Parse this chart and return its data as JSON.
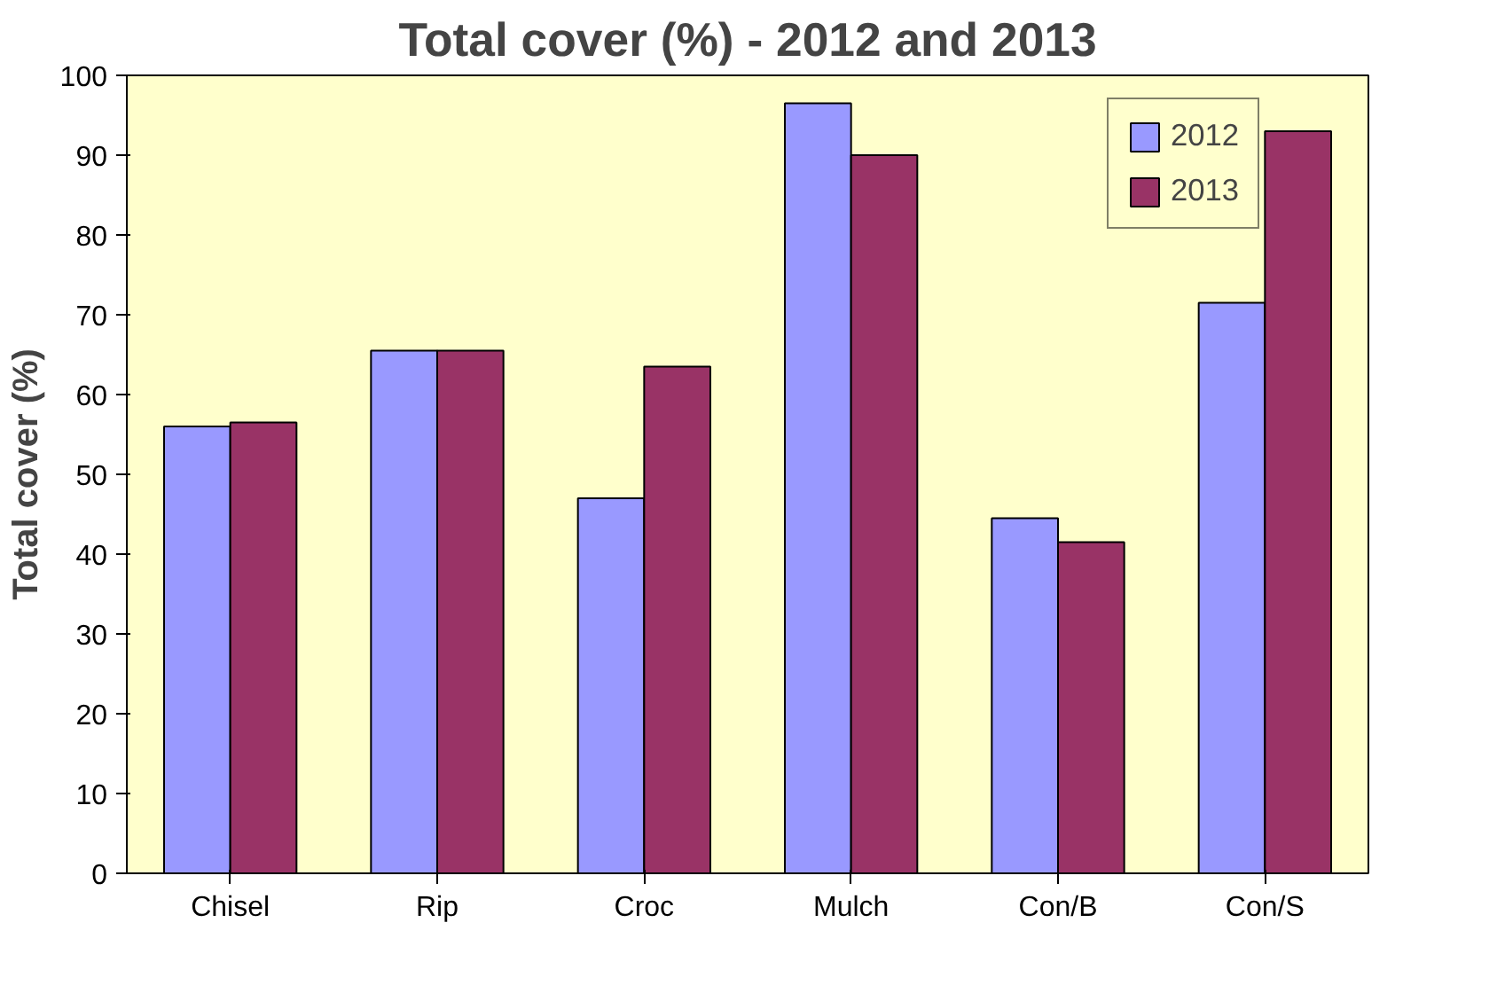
{
  "chart_data": {
    "type": "bar",
    "title": "Total cover (%) - 2012 and 2013",
    "ylabel": "Total cover (%)",
    "categories": [
      "Chisel",
      "Rip",
      "Croc",
      "Mulch",
      "Con/B",
      "Con/S"
    ],
    "series": [
      {
        "name": "2012",
        "color": "#9999ff",
        "values": [
          56,
          65.5,
          47,
          96.5,
          44.5,
          71.5
        ]
      },
      {
        "name": "2013",
        "color": "#993366",
        "values": [
          56.5,
          65.5,
          63.5,
          90,
          41.5,
          93
        ]
      }
    ],
    "ylim": [
      0,
      100
    ],
    "yticks": [
      0,
      10,
      20,
      30,
      40,
      50,
      60,
      70,
      80,
      90,
      100
    ],
    "grid": false,
    "legend": "top right"
  }
}
